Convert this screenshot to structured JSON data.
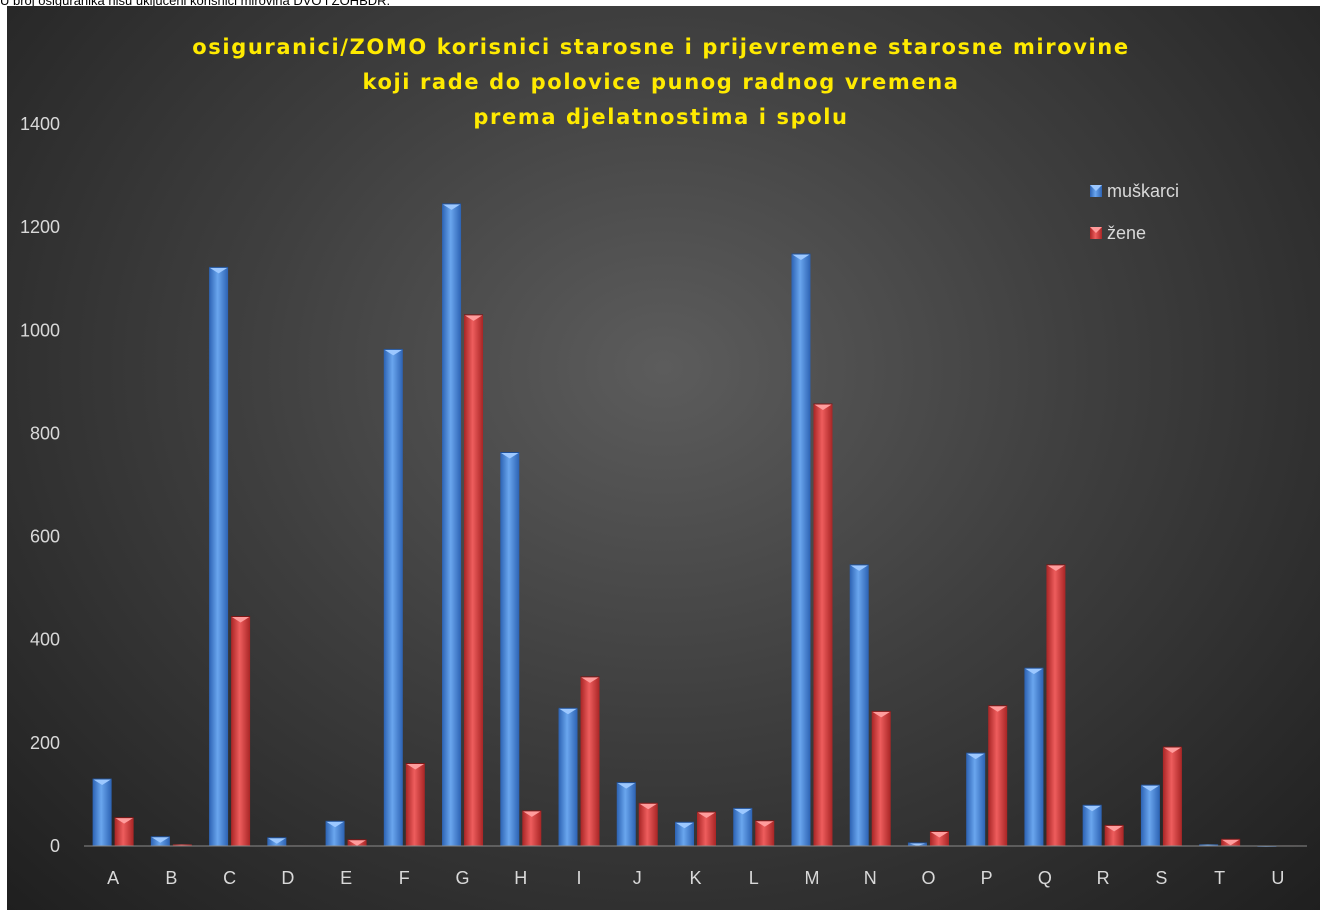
{
  "page": {
    "top_note": "U broj osiguranika nisu uključeni korisnici mirovina DVO i ZOHBDR."
  },
  "chart_data": {
    "type": "bar",
    "title": [
      "osiguranici/ZOMO korisnici starosne i prijevremene starosne mirovine",
      "koji rade do polovice punog radnog vremena",
      "prema djelatnostima i spolu"
    ],
    "categories": [
      "A",
      "B",
      "C",
      "D",
      "E",
      "F",
      "G",
      "H",
      "I",
      "J",
      "K",
      "L",
      "M",
      "N",
      "O",
      "P",
      "Q",
      "R",
      "S",
      "T",
      "U"
    ],
    "series": [
      {
        "name": "muškarci",
        "color": "#3f7fd6",
        "values": [
          130,
          18,
          1122,
          16,
          48,
          963,
          1245,
          763,
          267,
          123,
          46,
          73,
          1148,
          545,
          6,
          180,
          345,
          79,
          118,
          3,
          0
        ]
      },
      {
        "name": "žene",
        "color": "#d43a3a",
        "values": [
          55,
          3,
          445,
          1,
          12,
          160,
          1030,
          68,
          328,
          83,
          66,
          49,
          857,
          261,
          28,
          272,
          545,
          40,
          192,
          13,
          1
        ]
      }
    ],
    "ylim": [
      0,
      1400
    ],
    "yticks": [
      0,
      200,
      400,
      600,
      800,
      1000,
      1200,
      1400
    ],
    "xlabel": "",
    "ylabel": "",
    "legend_position": "top-right",
    "grid": false
  }
}
